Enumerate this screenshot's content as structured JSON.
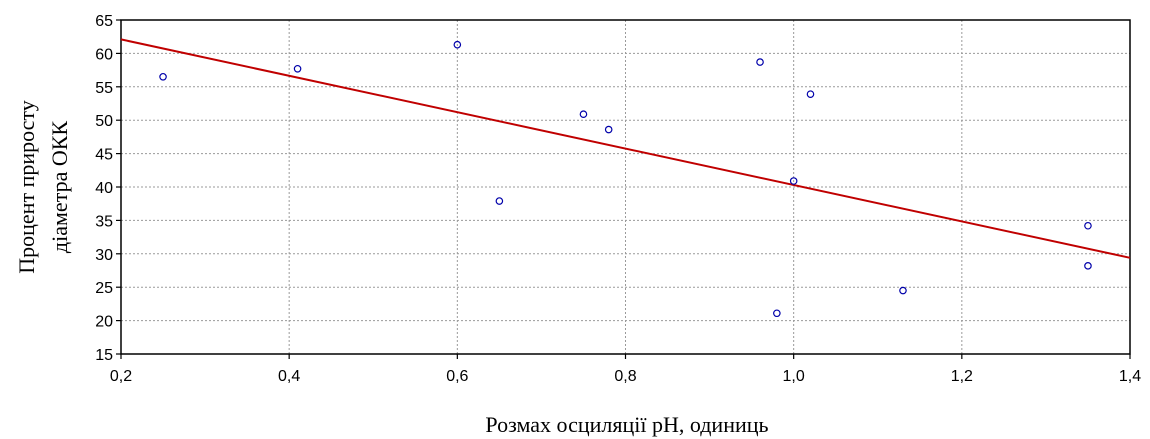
{
  "chart_data": {
    "type": "scatter",
    "title": "",
    "xlabel": "Розмах осциляції pH, одиниць",
    "ylabel_lines": [
      "Процент приросту",
      "діаметра ОКК"
    ],
    "xlim": [
      0.2,
      1.4
    ],
    "ylim": [
      15,
      65
    ],
    "x_ticks": [
      0.2,
      0.4,
      0.6,
      0.8,
      1.0,
      1.2,
      1.4
    ],
    "x_tick_labels": [
      "0,2",
      "0,4",
      "0,6",
      "0,8",
      "1,0",
      "1,2",
      "1,4"
    ],
    "y_ticks": [
      15,
      20,
      25,
      30,
      35,
      40,
      45,
      50,
      55,
      60,
      65
    ],
    "y_tick_labels": [
      "15",
      "20",
      "25",
      "30",
      "35",
      "40",
      "45",
      "50",
      "55",
      "60",
      "65"
    ],
    "grid": true,
    "points": [
      {
        "x": 0.25,
        "y": 56.5
      },
      {
        "x": 0.41,
        "y": 57.7
      },
      {
        "x": 0.6,
        "y": 61.3
      },
      {
        "x": 0.65,
        "y": 37.9
      },
      {
        "x": 0.75,
        "y": 50.9
      },
      {
        "x": 0.78,
        "y": 48.6
      },
      {
        "x": 0.96,
        "y": 58.7
      },
      {
        "x": 0.98,
        "y": 21.1
      },
      {
        "x": 1.0,
        "y": 40.9
      },
      {
        "x": 1.02,
        "y": 53.9
      },
      {
        "x": 1.13,
        "y": 24.5
      },
      {
        "x": 1.35,
        "y": 34.2
      },
      {
        "x": 1.35,
        "y": 28.2
      }
    ],
    "fit_line": {
      "x": [
        0.2,
        1.4
      ],
      "y": [
        62.1,
        29.4
      ]
    },
    "colors": {
      "points": "#0000aa",
      "fit_line": "#c00000",
      "grid": "#9a9a9a",
      "axis": "#000000"
    }
  }
}
